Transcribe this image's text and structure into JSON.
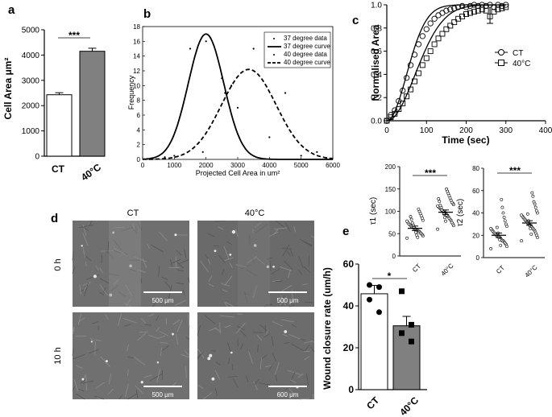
{
  "panels": {
    "a": "a",
    "b": "b",
    "c": "c",
    "d": "d",
    "e": "e"
  },
  "colors": {
    "bar_ct": "#ffffff",
    "bar_40": "#808080",
    "micro_bg": "#6b6b6b"
  },
  "chart_data": [
    {
      "id": "a",
      "type": "bar",
      "ylabel": "Cell Area μm²",
      "categories": [
        "CT",
        "40°C"
      ],
      "values": [
        2430,
        4150
      ],
      "errors": [
        80,
        120
      ],
      "ylim": [
        0,
        5000
      ],
      "yticks": [
        "0",
        "1000",
        "2000",
        "3000",
        "4000",
        "5000"
      ],
      "significance": "***"
    },
    {
      "id": "b",
      "type": "line",
      "xlabel": "Projected Cell Area in um²",
      "ylabel": "Frequency",
      "xlim": [
        0,
        6000
      ],
      "ylim": [
        0,
        18
      ],
      "xticks": [
        "0",
        "1000",
        "2000",
        "3000",
        "4000",
        "5000",
        "6000"
      ],
      "yticks": [
        "0",
        "2",
        "4",
        "6",
        "8",
        "10",
        "12",
        "14",
        "16",
        "18"
      ],
      "legend": [
        "37 degree data",
        "37 degree curve",
        "40 degree data",
        "40 degree curve"
      ],
      "legend_position": "top-right",
      "series": [
        {
          "name": "37 degree data",
          "style": "points",
          "points": [
            [
              1500,
              15
            ],
            [
              1900,
              1
            ],
            [
              2000,
              16
            ],
            [
              2500,
              11
            ],
            [
              2600,
              9
            ],
            [
              3000,
              7
            ],
            [
              700,
              0.3
            ],
            [
              1000,
              0.5
            ]
          ]
        },
        {
          "name": "37 degree curve",
          "style": "solid",
          "mean": 2000,
          "sd": 560,
          "amp": 17
        },
        {
          "name": "40 degree data",
          "style": "points",
          "points": [
            [
              2800,
              10
            ],
            [
              3500,
              15
            ],
            [
              4000,
              3
            ],
            [
              4500,
              9
            ],
            [
              5000,
              0.5
            ],
            [
              5500,
              1
            ],
            [
              5800,
              0.2
            ]
          ]
        },
        {
          "name": "40 degree curve",
          "style": "dashed",
          "mean": 3350,
          "sd": 860,
          "amp": 12.2
        }
      ]
    },
    {
      "id": "c",
      "type": "line",
      "xlabel": "Time (sec)",
      "ylabel": "Normalised Area",
      "xlim": [
        0,
        400
      ],
      "ylim": [
        0,
        1.0
      ],
      "xticks": [
        "0",
        "100",
        "200",
        "300",
        "400"
      ],
      "yticks": [
        "0.0",
        "0.2",
        "0.4",
        "0.6",
        "0.8",
        "1.0"
      ],
      "legend": [
        "CT",
        "40°C"
      ],
      "legend_position": "right",
      "series": [
        {
          "name": "CT",
          "marker": "circle",
          "tau": 70,
          "x": [
            0,
            10,
            20,
            30,
            40,
            50,
            60,
            70,
            80,
            90,
            100,
            110,
            120,
            130,
            140,
            150,
            160,
            170,
            180,
            190,
            200,
            210,
            220,
            230,
            240,
            250,
            260,
            270,
            280,
            290,
            300
          ],
          "y": [
            0.0,
            0.05,
            0.09,
            0.17,
            0.26,
            0.37,
            0.48,
            0.57,
            0.66,
            0.73,
            0.79,
            0.84,
            0.88,
            0.91,
            0.93,
            0.95,
            0.96,
            0.97,
            0.98,
            0.99,
            0.98,
            0.99,
            1.0,
            0.99,
            1.0,
            0.99,
            1.0,
            0.98,
            1.0,
            0.99,
            1.0
          ]
        },
        {
          "name": "40°C",
          "marker": "square",
          "tau": 100,
          "x": [
            0,
            10,
            20,
            30,
            40,
            50,
            60,
            70,
            80,
            90,
            100,
            110,
            120,
            130,
            140,
            150,
            160,
            170,
            180,
            190,
            200,
            210,
            220,
            230,
            240,
            250,
            260,
            270,
            280,
            290,
            300
          ],
          "y": [
            0.0,
            0.03,
            0.06,
            0.1,
            0.15,
            0.21,
            0.27,
            0.34,
            0.41,
            0.48,
            0.54,
            0.6,
            0.66,
            0.71,
            0.75,
            0.79,
            0.82,
            0.85,
            0.88,
            0.9,
            0.92,
            0.93,
            0.94,
            0.95,
            0.96,
            0.95,
            0.9,
            0.94,
            0.96,
            0.97,
            0.98
          ]
        }
      ]
    },
    {
      "id": "c1",
      "type": "scatter",
      "ylabel": "τ1 (sec)",
      "categories": [
        "CT",
        "40°C"
      ],
      "ylim": [
        0,
        200
      ],
      "yticks": [
        "0",
        "50",
        "100",
        "150",
        "200"
      ],
      "means": [
        62,
        98
      ],
      "errors": [
        5,
        5
      ],
      "significance": "***",
      "points": [
        [
          40,
          45,
          48,
          50,
          52,
          55,
          55,
          57,
          58,
          60,
          60,
          62,
          63,
          65,
          66,
          68,
          70,
          72,
          75,
          78,
          80,
          85,
          90,
          95,
          100,
          105,
          42,
          47,
          53,
          59,
          64,
          69,
          74,
          82,
          88
        ],
        [
          60,
          68,
          72,
          75,
          80,
          82,
          85,
          88,
          90,
          92,
          95,
          96,
          98,
          100,
          102,
          104,
          106,
          108,
          110,
          112,
          115,
          118,
          120,
          125,
          130,
          135,
          140,
          145,
          150,
          78,
          86,
          94,
          99,
          103,
          109,
          113,
          122,
          128
        ]
      ]
    },
    {
      "id": "c2",
      "type": "scatter",
      "ylabel": "τ2 (sec)",
      "categories": [
        "CT",
        "40°C"
      ],
      "ylim": [
        0,
        80
      ],
      "yticks": [
        "0",
        "20",
        "40",
        "60",
        "80"
      ],
      "means": [
        20,
        31
      ],
      "errors": [
        2,
        2
      ],
      "significance": "***",
      "points": [
        [
          8,
          10,
          12,
          13,
          14,
          15,
          15,
          16,
          17,
          18,
          18,
          19,
          20,
          20,
          21,
          22,
          23,
          24,
          25,
          26,
          28,
          30,
          33,
          36,
          40,
          45,
          52,
          11,
          16,
          19,
          22,
          27
        ],
        [
          15,
          18,
          20,
          22,
          24,
          25,
          26,
          27,
          28,
          29,
          30,
          30,
          31,
          32,
          33,
          34,
          35,
          36,
          37,
          38,
          40,
          42,
          45,
          48,
          50,
          55,
          58,
          21,
          26,
          29,
          33,
          39
        ]
      ]
    },
    {
      "id": "e",
      "type": "bar",
      "ylabel": "Wound closure rate (um/h)",
      "categories": [
        "CT",
        "40°C"
      ],
      "values": [
        45.8,
        30.5
      ],
      "errors": [
        4,
        4.5
      ],
      "ylim": [
        0,
        60
      ],
      "yticks": [
        "0",
        "20",
        "40",
        "60"
      ],
      "significance": "*",
      "points": [
        [
          50,
          49,
          43,
          37
        ],
        [
          47,
          31,
          27,
          23
        ]
      ]
    }
  ],
  "micrographs": {
    "column_labels": [
      "CT",
      "40°C"
    ],
    "row_labels": [
      "0 h",
      "10 h"
    ],
    "scalebars": [
      "500 μm",
      "500 μm",
      "500 μm",
      "600 μm"
    ]
  }
}
